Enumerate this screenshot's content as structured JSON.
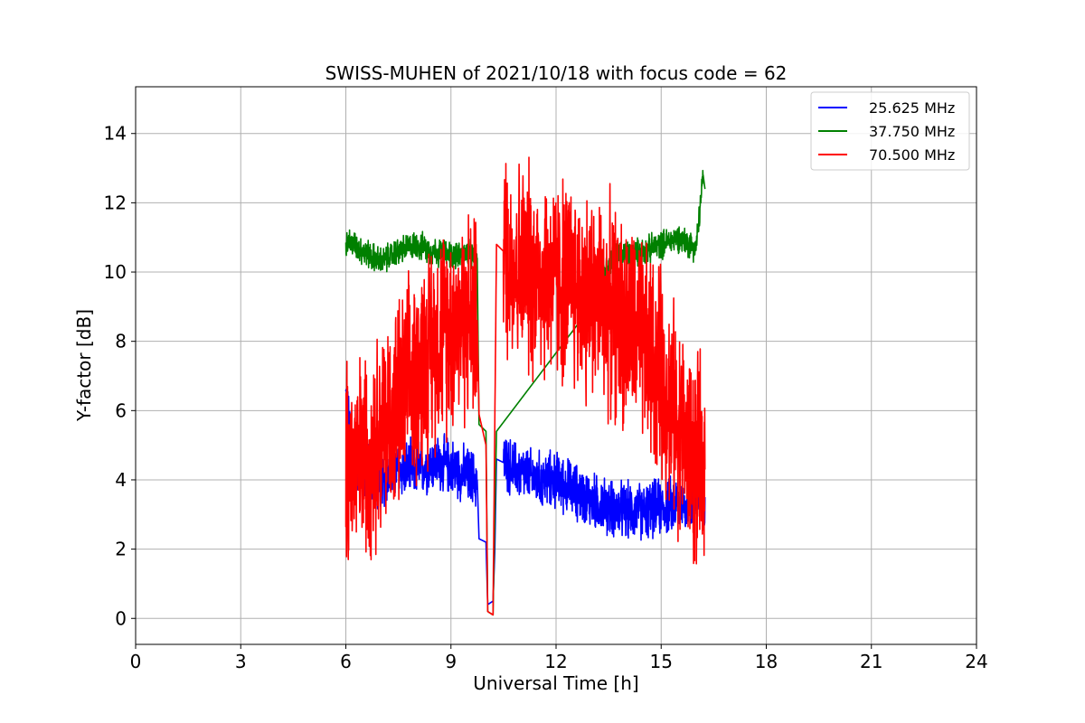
{
  "chart_data": {
    "type": "line",
    "title": "SWISS-MUHEN of 2021/10/18 with focus code = 62",
    "xlabel": "Universal Time [h]",
    "ylabel": "Y-factor [dB]",
    "xlim": [
      0,
      24
    ],
    "ylim": [
      -0.75,
      15.35
    ],
    "xticks": [
      0,
      3,
      6,
      9,
      12,
      15,
      18,
      21,
      24
    ],
    "yticks": [
      0,
      2,
      4,
      6,
      8,
      10,
      12,
      14
    ],
    "grid": true,
    "legend_position": "top-right",
    "series": [
      {
        "name": "25.625 MHz",
        "color": "#0000ff",
        "points": [
          {
            "x": 6.0,
            "y": 6.4
          },
          {
            "x": 6.2,
            "y": 4.6
          },
          {
            "x": 6.5,
            "y": 4.3
          },
          {
            "x": 7.0,
            "y": 4.0
          },
          {
            "x": 7.5,
            "y": 4.3
          },
          {
            "x": 8.0,
            "y": 4.3
          },
          {
            "x": 8.5,
            "y": 4.5
          },
          {
            "x": 9.0,
            "y": 4.4
          },
          {
            "x": 9.5,
            "y": 4.1
          },
          {
            "x": 9.75,
            "y": 4.0
          },
          {
            "x": 9.8,
            "y": 2.3
          },
          {
            "x": 10.0,
            "y": 2.2
          },
          {
            "x": 10.05,
            "y": 0.4
          },
          {
            "x": 10.2,
            "y": 0.5
          },
          {
            "x": 10.25,
            "y": 1.9
          },
          {
            "x": 10.3,
            "y": 4.6
          },
          {
            "x": 10.5,
            "y": 4.5
          },
          {
            "x": 11.0,
            "y": 4.2
          },
          {
            "x": 11.5,
            "y": 4.0
          },
          {
            "x": 12.0,
            "y": 4.0
          },
          {
            "x": 12.5,
            "y": 3.7
          },
          {
            "x": 13.0,
            "y": 3.4
          },
          {
            "x": 13.5,
            "y": 3.2
          },
          {
            "x": 14.0,
            "y": 3.1
          },
          {
            "x": 14.5,
            "y": 3.1
          },
          {
            "x": 15.0,
            "y": 3.2
          },
          {
            "x": 15.5,
            "y": 3.3
          },
          {
            "x": 16.0,
            "y": 3.4
          },
          {
            "x": 16.25,
            "y": 3.5
          }
        ]
      },
      {
        "name": "37.750 MHz",
        "color": "#008000",
        "points": [
          {
            "x": 6.0,
            "y": 10.9
          },
          {
            "x": 6.25,
            "y": 10.8
          },
          {
            "x": 6.5,
            "y": 10.6
          },
          {
            "x": 7.0,
            "y": 10.3
          },
          {
            "x": 7.5,
            "y": 10.6
          },
          {
            "x": 8.0,
            "y": 10.8
          },
          {
            "x": 8.5,
            "y": 10.6
          },
          {
            "x": 9.0,
            "y": 10.5
          },
          {
            "x": 9.5,
            "y": 10.5
          },
          {
            "x": 9.75,
            "y": 10.4
          },
          {
            "x": 9.8,
            "y": 5.6
          },
          {
            "x": 10.0,
            "y": 5.4
          },
          {
            "x": 10.05,
            "y": 0.2
          },
          {
            "x": 10.2,
            "y": 0.1
          },
          {
            "x": 10.3,
            "y": 5.4
          },
          {
            "x": 13.0,
            "y": 9.0
          },
          {
            "x": 13.6,
            "y": 10.5
          },
          {
            "x": 14.0,
            "y": 10.5
          },
          {
            "x": 14.5,
            "y": 10.6
          },
          {
            "x": 15.0,
            "y": 10.8
          },
          {
            "x": 15.5,
            "y": 11.0
          },
          {
            "x": 16.0,
            "y": 10.7
          },
          {
            "x": 16.2,
            "y": 12.8
          },
          {
            "x": 16.25,
            "y": 12.4
          }
        ]
      },
      {
        "name": "70.500 MHz",
        "color": "#ff0000",
        "points": [
          {
            "x": 6.0,
            "y": 4.4
          },
          {
            "x": 6.25,
            "y": 4.4
          },
          {
            "x": 6.5,
            "y": 4.7
          },
          {
            "x": 7.0,
            "y": 5.4
          },
          {
            "x": 7.5,
            "y": 6.1
          },
          {
            "x": 8.0,
            "y": 7.0
          },
          {
            "x": 8.5,
            "y": 8.0
          },
          {
            "x": 9.0,
            "y": 8.6
          },
          {
            "x": 9.5,
            "y": 8.7
          },
          {
            "x": 9.75,
            "y": 8.6
          },
          {
            "x": 9.8,
            "y": 5.9
          },
          {
            "x": 10.0,
            "y": 5.0
          },
          {
            "x": 10.05,
            "y": 0.2
          },
          {
            "x": 10.2,
            "y": 0.1
          },
          {
            "x": 10.3,
            "y": 10.8
          },
          {
            "x": 10.5,
            "y": 10.6
          },
          {
            "x": 11.0,
            "y": 10.2
          },
          {
            "x": 11.5,
            "y": 9.9
          },
          {
            "x": 12.0,
            "y": 9.8
          },
          {
            "x": 12.5,
            "y": 9.6
          },
          {
            "x": 13.0,
            "y": 9.3
          },
          {
            "x": 13.5,
            "y": 9.0
          },
          {
            "x": 14.0,
            "y": 8.5
          },
          {
            "x": 14.5,
            "y": 7.8
          },
          {
            "x": 15.0,
            "y": 7.0
          },
          {
            "x": 15.5,
            "y": 5.6
          },
          {
            "x": 16.0,
            "y": 4.3
          },
          {
            "x": 16.25,
            "y": 4.3
          }
        ]
      }
    ]
  }
}
